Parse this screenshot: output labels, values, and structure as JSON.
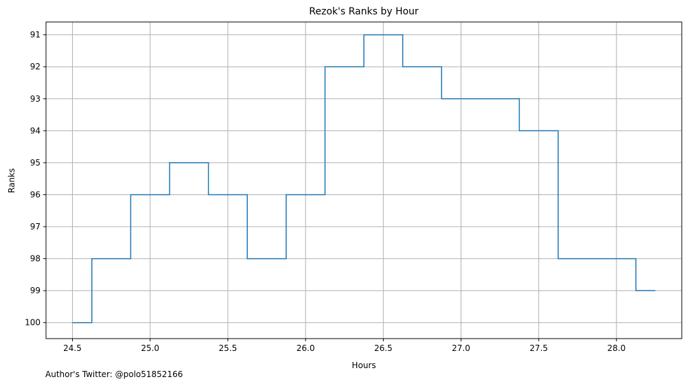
{
  "chart_data": {
    "type": "line",
    "step": "post",
    "title": "Rezok's Ranks by Hour",
    "xlabel": "Hours",
    "ylabel": "Ranks",
    "xlim": [
      24.33,
      28.42
    ],
    "ylim": [
      100.5,
      90.6
    ],
    "y_inverted": true,
    "grid": true,
    "xticks": [
      "24.5",
      "25.0",
      "25.5",
      "26.0",
      "26.5",
      "27.0",
      "27.5",
      "28.0"
    ],
    "yticks": [
      "91",
      "92",
      "93",
      "94",
      "95",
      "96",
      "97",
      "98",
      "99",
      "100"
    ],
    "series": [
      {
        "color": "#1f77b4",
        "x": [
          24.5,
          24.625,
          24.875,
          25.125,
          25.375,
          25.625,
          25.875,
          26.125,
          26.375,
          26.625,
          26.875,
          27.125,
          27.375,
          27.625,
          27.875,
          28.125,
          28.25
        ],
        "y": [
          100,
          98,
          96,
          95,
          96,
          98,
          96,
          92,
          91,
          92,
          93,
          93,
          94,
          98,
          98,
          99,
          99
        ]
      }
    ]
  },
  "footnote": "Author's Twitter: @polo51852166"
}
